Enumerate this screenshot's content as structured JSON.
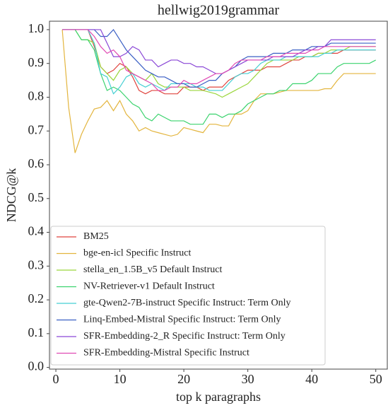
{
  "chart_data": {
    "type": "line",
    "title": "hellwig2019grammar",
    "xlabel": "top k paragraphs",
    "ylabel": "NDCG@k",
    "x": [
      1,
      2,
      3,
      4,
      5,
      6,
      7,
      8,
      9,
      10,
      11,
      12,
      13,
      14,
      15,
      16,
      17,
      18,
      19,
      20,
      21,
      22,
      23,
      24,
      25,
      26,
      27,
      28,
      29,
      30,
      31,
      32,
      33,
      34,
      35,
      36,
      37,
      38,
      39,
      40,
      41,
      42,
      43,
      44,
      45,
      46,
      47,
      48,
      49,
      50
    ],
    "series": [
      {
        "name": "BM25",
        "color": "#e0453f",
        "values": [
          1,
          1,
          1,
          1,
          1,
          0.95,
          0.89,
          0.87,
          0.88,
          0.9,
          0.89,
          0.86,
          0.82,
          0.81,
          0.82,
          0.82,
          0.81,
          0.81,
          0.81,
          0.83,
          0.83,
          0.83,
          0.82,
          0.83,
          0.83,
          0.83,
          0.85,
          0.86,
          0.87,
          0.88,
          0.88,
          0.88,
          0.89,
          0.89,
          0.89,
          0.9,
          0.91,
          0.91,
          0.92,
          0.92,
          0.93,
          0.93,
          0.93,
          0.93,
          0.94,
          0.94,
          0.94,
          0.94,
          0.94,
          0.94
        ]
      },
      {
        "name": "bge-en-icl Specific Instruct",
        "color": "#e3b53e",
        "values": [
          1,
          0.77,
          0.635,
          0.69,
          0.73,
          0.765,
          0.77,
          0.79,
          0.76,
          0.79,
          0.75,
          0.73,
          0.7,
          0.71,
          0.7,
          0.695,
          0.69,
          0.685,
          0.69,
          0.71,
          0.705,
          0.7,
          0.695,
          0.72,
          0.72,
          0.715,
          0.715,
          0.75,
          0.75,
          0.76,
          0.79,
          0.81,
          0.81,
          0.81,
          0.815,
          0.82,
          0.82,
          0.82,
          0.82,
          0.82,
          0.82,
          0.825,
          0.825,
          0.85,
          0.87,
          0.87,
          0.87,
          0.87,
          0.87,
          0.87
        ]
      },
      {
        "name": "stella_en_1.5B_v5 Default Instruct",
        "color": "#9bd63c",
        "values": [
          1,
          1,
          1,
          0.97,
          0.97,
          0.96,
          0.89,
          0.87,
          0.85,
          0.88,
          0.89,
          0.87,
          0.86,
          0.85,
          0.87,
          0.84,
          0.83,
          0.83,
          0.83,
          0.83,
          0.82,
          0.82,
          0.82,
          0.815,
          0.81,
          0.8,
          0.81,
          0.82,
          0.83,
          0.84,
          0.86,
          0.88,
          0.9,
          0.91,
          0.91,
          0.91,
          0.91,
          0.92,
          0.92,
          0.92,
          0.93,
          0.93,
          0.94,
          0.94,
          0.94,
          0.95,
          0.95,
          0.95,
          0.95,
          0.95
        ]
      },
      {
        "name": "NV-Retriever-v1 Default Instruct",
        "color": "#3bd36e",
        "values": [
          1,
          1,
          1,
          0.97,
          0.97,
          0.94,
          0.87,
          0.82,
          0.83,
          0.82,
          0.8,
          0.78,
          0.77,
          0.74,
          0.73,
          0.75,
          0.74,
          0.73,
          0.73,
          0.73,
          0.72,
          0.72,
          0.72,
          0.75,
          0.75,
          0.74,
          0.75,
          0.75,
          0.76,
          0.78,
          0.79,
          0.8,
          0.81,
          0.81,
          0.82,
          0.82,
          0.84,
          0.84,
          0.84,
          0.85,
          0.87,
          0.87,
          0.87,
          0.89,
          0.9,
          0.9,
          0.9,
          0.9,
          0.9,
          0.91
        ]
      },
      {
        "name": "gte-Qwen2-7B-instruct Specific Instruct: Term Only",
        "color": "#45cfd3",
        "values": [
          1,
          1,
          1,
          1,
          1,
          0.96,
          0.87,
          0.86,
          0.81,
          0.83,
          0.86,
          0.87,
          0.84,
          0.83,
          0.84,
          0.83,
          0.82,
          0.84,
          0.84,
          0.84,
          0.84,
          0.83,
          0.83,
          0.82,
          0.82,
          0.82,
          0.84,
          0.86,
          0.87,
          0.87,
          0.88,
          0.9,
          0.91,
          0.91,
          0.91,
          0.92,
          0.92,
          0.92,
          0.92,
          0.92,
          0.92,
          0.93,
          0.93,
          0.94,
          0.94,
          0.94,
          0.94,
          0.94,
          0.94,
          0.94
        ]
      },
      {
        "name": "Linq-Embed-Mistral Specific Instruct: Term Only",
        "color": "#3a5fc4",
        "values": [
          1,
          1,
          1,
          1,
          1,
          1,
          0.98,
          0.98,
          1,
          0.97,
          0.94,
          0.92,
          0.9,
          0.88,
          0.87,
          0.86,
          0.86,
          0.85,
          0.84,
          0.84,
          0.83,
          0.83,
          0.84,
          0.85,
          0.85,
          0.87,
          0.88,
          0.89,
          0.91,
          0.92,
          0.92,
          0.92,
          0.92,
          0.93,
          0.93,
          0.93,
          0.94,
          0.94,
          0.94,
          0.95,
          0.95,
          0.95,
          0.96,
          0.96,
          0.96,
          0.96,
          0.96,
          0.96,
          0.96,
          0.96
        ]
      },
      {
        "name": "SFR-Embedding-2_R Specific Instruct: Term Only",
        "color": "#8a47d6",
        "values": [
          1,
          1,
          1,
          1,
          1,
          1,
          1,
          0.96,
          0.92,
          0.92,
          0.93,
          0.95,
          0.94,
          0.91,
          0.91,
          0.89,
          0.9,
          0.91,
          0.91,
          0.9,
          0.9,
          0.89,
          0.89,
          0.88,
          0.87,
          0.87,
          0.88,
          0.89,
          0.9,
          0.91,
          0.91,
          0.91,
          0.91,
          0.92,
          0.92,
          0.92,
          0.92,
          0.93,
          0.94,
          0.94,
          0.95,
          0.95,
          0.97,
          0.97,
          0.97,
          0.97,
          0.97,
          0.97,
          0.97,
          0.97
        ]
      },
      {
        "name": "SFR-Embedding-Mistral Specific Instruct",
        "color": "#e04bb4",
        "values": [
          1,
          1,
          1,
          1,
          1,
          0.98,
          0.95,
          0.93,
          0.94,
          0.92,
          0.88,
          0.87,
          0.86,
          0.85,
          0.84,
          0.82,
          0.82,
          0.83,
          0.83,
          0.85,
          0.84,
          0.84,
          0.85,
          0.86,
          0.87,
          0.87,
          0.88,
          0.9,
          0.91,
          0.91,
          0.91,
          0.91,
          0.92,
          0.92,
          0.92,
          0.93,
          0.93,
          0.93,
          0.93,
          0.94,
          0.94,
          0.95,
          0.95,
          0.95,
          0.95,
          0.95,
          0.95,
          0.95,
          0.95,
          0.95
        ]
      }
    ],
    "xlim": [
      -1,
      51.8
    ],
    "xticks": [
      0,
      10,
      20,
      30,
      40,
      50
    ],
    "ylim": [
      -0.005,
      1.025
    ],
    "yticks": [
      {
        "value": 0,
        "label": "0.0"
      },
      {
        "value": 0.1,
        "label": "0.1"
      },
      {
        "value": 0.2,
        "label": "0.2"
      },
      {
        "value": 0.3,
        "label": "0.3"
      },
      {
        "value": 0.4,
        "label": "0.4"
      },
      {
        "value": 0.5,
        "label": "0.5"
      },
      {
        "value": 0.6,
        "label": "0.6"
      },
      {
        "value": 0.7,
        "label": "0.7"
      },
      {
        "value": 0.8,
        "label": "0.8"
      },
      {
        "value": 0.9,
        "label": "0.9"
      },
      {
        "value": 1.0,
        "label": "1.0"
      }
    ],
    "legend": "lower left",
    "grid": false
  }
}
